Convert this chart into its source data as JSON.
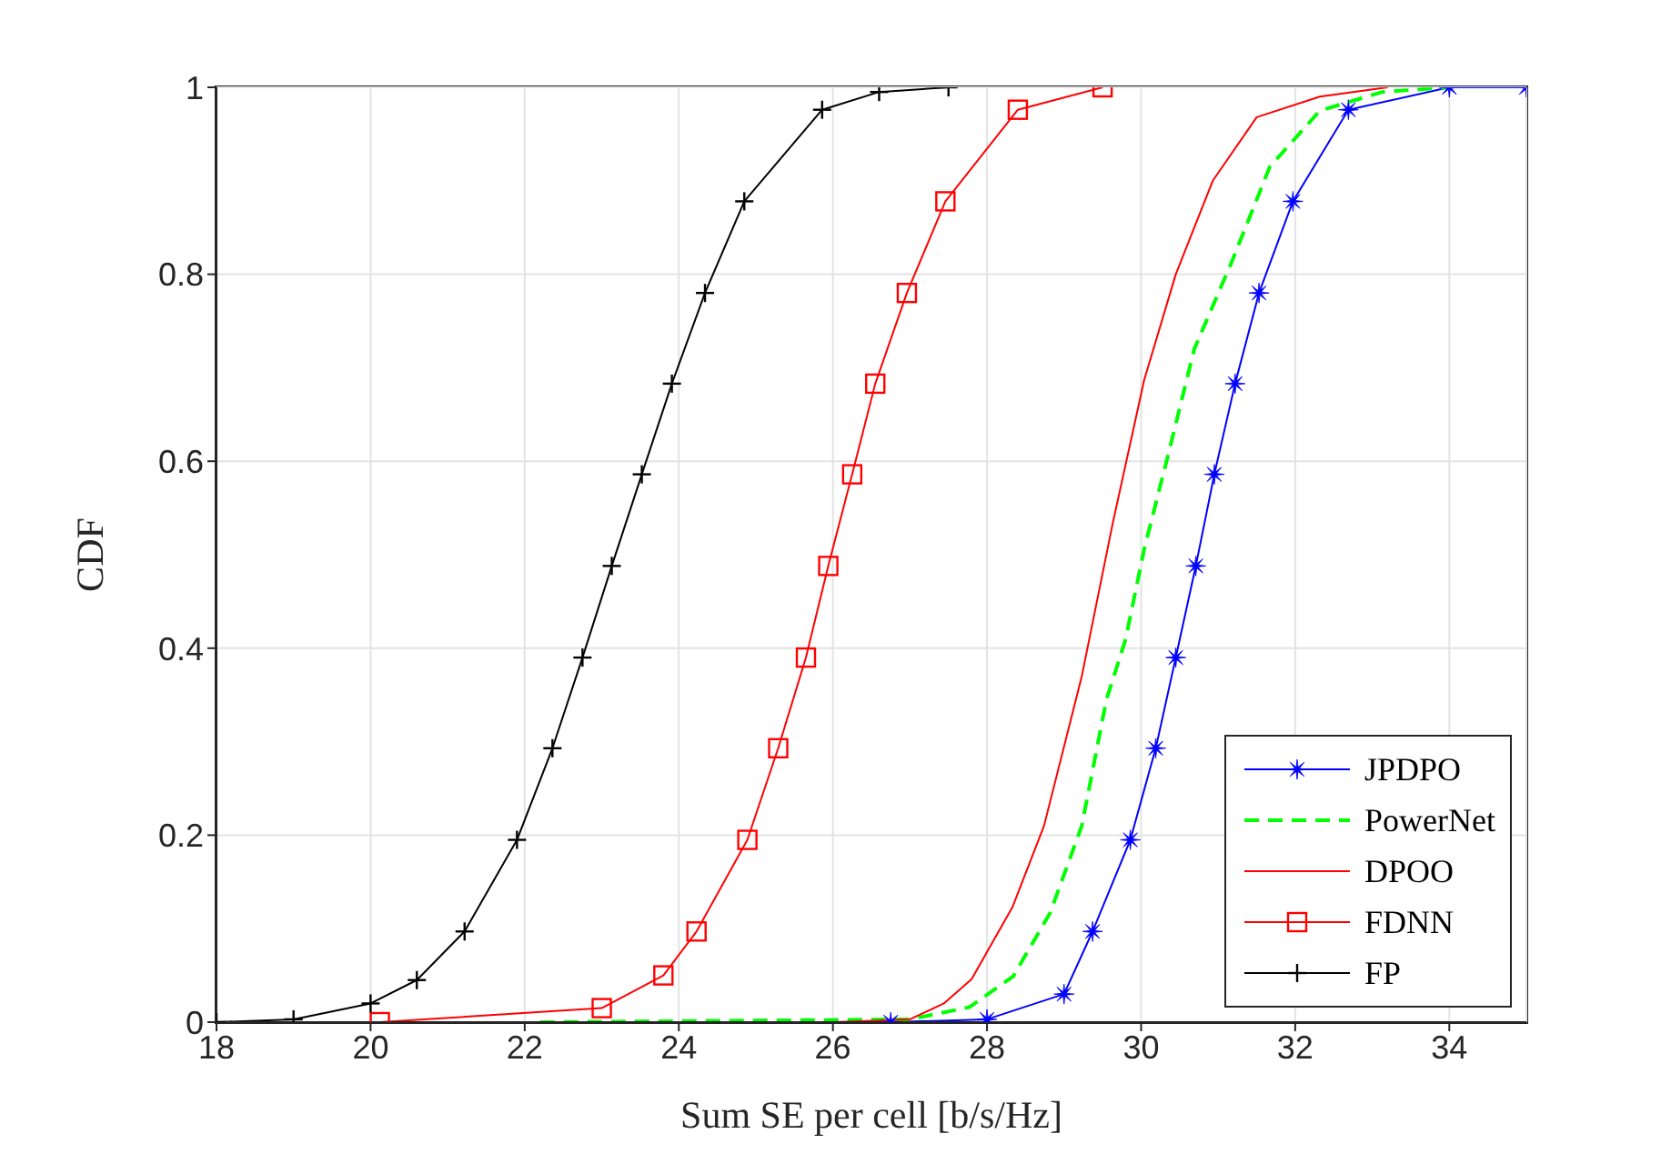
{
  "chart_data": {
    "type": "line",
    "xlabel": "Sum SE per cell [b/s/Hz]",
    "ylabel": "CDF",
    "xlim": [
      18,
      35
    ],
    "xticks": [
      18,
      20,
      22,
      24,
      26,
      28,
      30,
      32,
      34
    ],
    "ylim": [
      0,
      1
    ],
    "yticks": [
      0,
      0.2,
      0.4,
      0.6,
      0.8,
      1
    ],
    "grid": true,
    "legend": "bottom right",
    "series": [
      {
        "name": "JPDPO",
        "color": "#0000ff",
        "marker": "star",
        "line_style": "solid",
        "x": [
          26.75,
          28,
          29,
          29.37,
          29.86,
          30.19,
          30.45,
          30.71,
          30.95,
          31.22,
          31.53,
          31.97,
          32.69,
          34,
          35
        ],
        "values": [
          0,
          0.003,
          0.03,
          0.097,
          0.195,
          0.293,
          0.39,
          0.488,
          0.586,
          0.683,
          0.78,
          0.878,
          0.976,
          1,
          1
        ]
      },
      {
        "name": "PowerNet",
        "color": "#00ff00",
        "marker": "none",
        "line_style": "dashed",
        "x": [
          22.2,
          27,
          27.77,
          28.34,
          28.82,
          29.23,
          29.55,
          29.8,
          30.04,
          30.33,
          30.69,
          31.18,
          31.67,
          32.32,
          33.13,
          34
        ],
        "values": [
          0,
          0.003,
          0.016,
          0.049,
          0.117,
          0.21,
          0.345,
          0.41,
          0.506,
          0.6,
          0.72,
          0.814,
          0.915,
          0.975,
          0.995,
          1
        ]
      },
      {
        "name": "DPOO",
        "color": "#ff0000",
        "marker": "none",
        "line_style": "solid",
        "x": [
          26,
          27,
          27.44,
          27.8,
          28.33,
          28.74,
          29.23,
          29.63,
          30.04,
          30.45,
          30.93,
          31.5,
          32.32,
          33.2
        ],
        "values": [
          0,
          0.003,
          0.02,
          0.046,
          0.123,
          0.21,
          0.37,
          0.533,
          0.687,
          0.8,
          0.9,
          0.968,
          0.99,
          1
        ]
      },
      {
        "name": "FDNN",
        "color": "#ff0000",
        "marker": "square",
        "line_style": "solid",
        "x": [
          20.12,
          23,
          23.8,
          24.23,
          24.89,
          25.29,
          25.65,
          25.94,
          26.25,
          26.55,
          26.96,
          27.46,
          28.4,
          29.5
        ],
        "values": [
          0,
          0.015,
          0.05,
          0.097,
          0.195,
          0.293,
          0.39,
          0.488,
          0.586,
          0.683,
          0.78,
          0.878,
          0.976,
          1
        ]
      },
      {
        "name": "FP",
        "color": "#000000",
        "marker": "cross",
        "line_style": "solid",
        "x": [
          18,
          19,
          20,
          20.6,
          21.22,
          21.9,
          22.36,
          22.75,
          23.13,
          23.52,
          23.91,
          24.34,
          24.85,
          25.86,
          26.6,
          27.5
        ],
        "values": [
          0,
          0.003,
          0.02,
          0.045,
          0.097,
          0.195,
          0.293,
          0.39,
          0.488,
          0.586,
          0.683,
          0.78,
          0.878,
          0.976,
          0.995,
          1
        ]
      }
    ]
  }
}
